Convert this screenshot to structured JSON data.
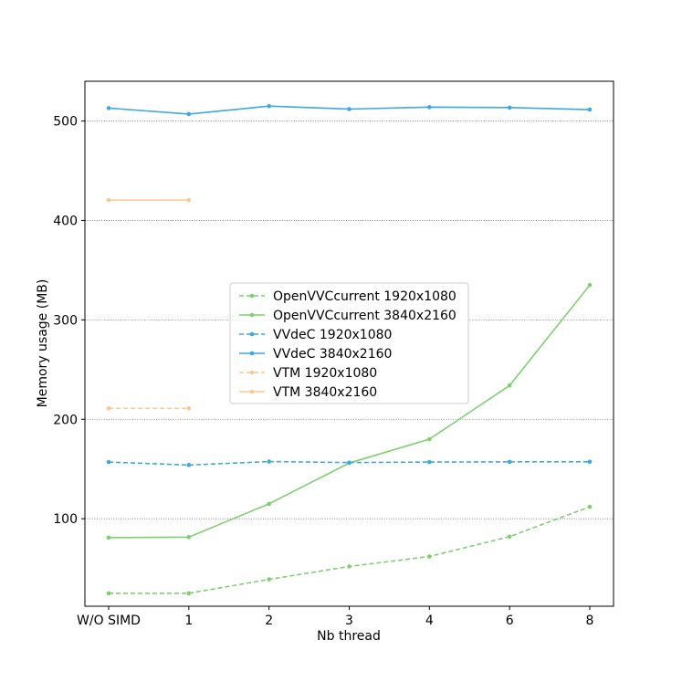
{
  "chart_data": {
    "type": "line",
    "title": "",
    "xlabel": "Nb thread",
    "ylabel": "Memory usage (MB)",
    "categories": [
      "W/O SIMD",
      "1",
      "2",
      "3",
      "4",
      "6",
      "8"
    ],
    "yticks": [
      100,
      200,
      300,
      400,
      500
    ],
    "ylim": [
      12,
      540
    ],
    "grid": "y-dotted",
    "legend_position": "center",
    "series": [
      {
        "name": "OpenVVCcurrent 1920x1080",
        "color": "#7fcf6e",
        "dash": "dashed",
        "values": [
          25,
          25,
          39,
          52,
          62,
          82,
          112
        ]
      },
      {
        "name": "OpenVVCcurrent 3840x2160",
        "color": "#7fcf6e",
        "dash": "solid",
        "values": [
          81,
          81.5,
          115,
          156,
          180,
          234,
          335
        ]
      },
      {
        "name": "VVdeC 1920x1080",
        "color": "#3fa8dc",
        "dash": "dashed",
        "values": [
          157,
          154,
          157.5,
          156.5,
          157,
          157.2,
          157.3
        ]
      },
      {
        "name": "VVdeC 3840x2160",
        "color": "#3fa8dc",
        "dash": "solid",
        "values": [
          513,
          507,
          515,
          512,
          514,
          513.5,
          511.5
        ]
      },
      {
        "name": "VTM 1920x1080",
        "color": "#f9c992",
        "dash": "dashed",
        "values": [
          211,
          211,
          null,
          null,
          null,
          null,
          null
        ]
      },
      {
        "name": "VTM 3840x2160",
        "color": "#f9c992",
        "dash": "solid",
        "values": [
          420.5,
          420.5,
          null,
          null,
          null,
          null,
          null
        ]
      }
    ]
  }
}
